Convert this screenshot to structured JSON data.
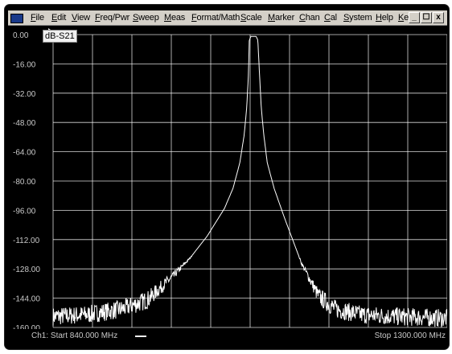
{
  "menubar": {
    "items": [
      "File",
      "Edit",
      "View",
      "Freq/Pwr",
      "Sweep",
      "Meas",
      "Format/Math",
      "Scale",
      "Marker",
      "Chan",
      "Cal",
      "System",
      "Help",
      "Keys"
    ],
    "window_buttons": [
      "_",
      "☐",
      "x"
    ]
  },
  "trace": {
    "label": "dB-S21"
  },
  "status": {
    "start": "Ch1: Start 840.000 MHz",
    "stop": "Stop 1300.000 MHz"
  },
  "colors": {
    "background": "#000000",
    "grid": "#ffffff",
    "trace": "#ffffff",
    "text": "#c8c8c8"
  },
  "chart_data": {
    "type": "line",
    "title": "",
    "xlabel": "",
    "ylabel": "",
    "x_range": [
      840,
      1300
    ],
    "x_unit": "MHz",
    "ylim": [
      -160,
      0
    ],
    "y_ticks": [
      "0.00",
      "-16.00",
      "-32.00",
      "-48.00",
      "-64.00",
      "-80.00",
      "-96.00",
      "-112.00",
      "-128.00",
      "-144.00",
      "-160.00"
    ],
    "grid": true,
    "x_divisions": 10,
    "series": [
      {
        "x": [
          840,
          880,
          920,
          950,
          980,
          1000,
          1020,
          1040,
          1050,
          1058,
          1063,
          1066,
          1068,
          1069,
          1071,
          1073,
          1077,
          1079,
          1081,
          1083,
          1086,
          1090,
          1098,
          1110,
          1130,
          1150,
          1170,
          1200,
          1240,
          1300
        ],
        "values": [
          -154,
          -153,
          -150,
          -145,
          -132,
          -122,
          -110,
          -95,
          -84,
          -70,
          -55,
          -40,
          -22,
          -3,
          -1,
          -1,
          -1,
          -3,
          -22,
          -40,
          -55,
          -70,
          -84,
          -100,
          -125,
          -143,
          -150,
          -153,
          -154,
          -155
        ]
      }
    ]
  }
}
